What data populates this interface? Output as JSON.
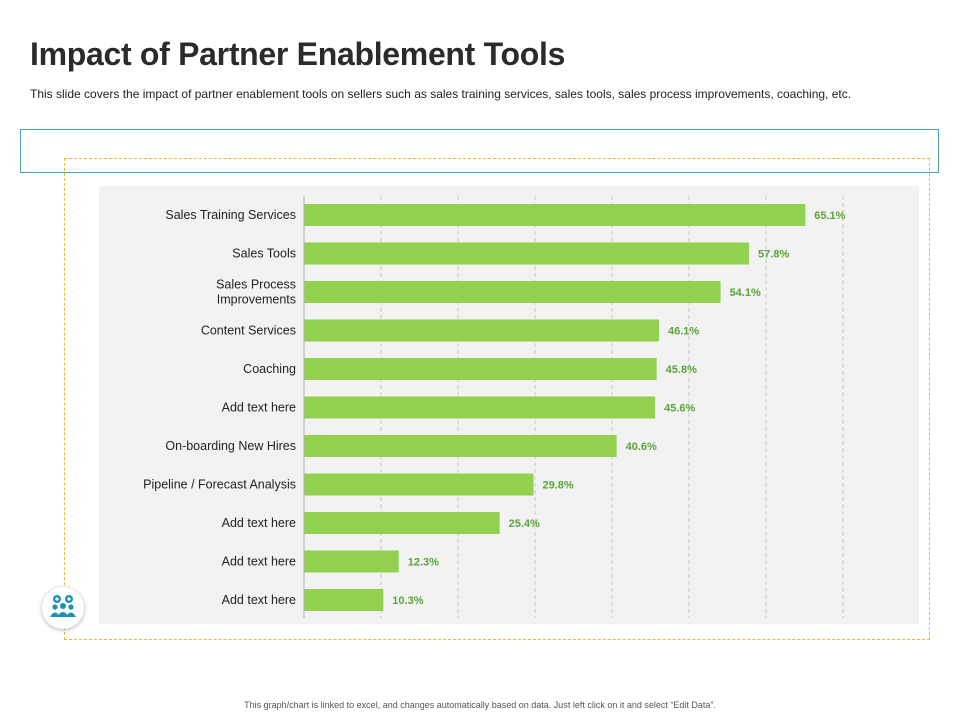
{
  "slide": {
    "title": "Impact of Partner Enablement Tools",
    "subtitle": "This slide covers the impact of partner enablement tools on sellers such as sales training services, sales tools, sales process improvements,  coaching, etc.",
    "footer": "This graph/chart is linked to excel, and changes automatically based on data. Just left click on it and select “Edit Data”.",
    "icon": "team-settings-icon"
  },
  "colors": {
    "bar": "#92d050",
    "label": "#5ba33b",
    "accent_teal": "#4aa3b4",
    "dashed_border": "#f0b53c"
  },
  "chart_data": {
    "type": "bar",
    "orientation": "horizontal",
    "title": "",
    "xlabel": "",
    "ylabel": "",
    "xlim": [
      0,
      80
    ],
    "grid": true,
    "categories": [
      "Sales Training Services",
      "Sales Tools",
      "Sales Process\nImprovements",
      "Content Services",
      "Coaching",
      "Add text here",
      "On-boarding New Hires",
      "Pipeline / Forecast Analysis",
      "Add text here",
      "Add text here",
      "Add text here"
    ],
    "values": [
      65.1,
      57.8,
      54.1,
      46.1,
      45.8,
      45.6,
      40.6,
      29.8,
      25.4,
      12.3,
      10.3
    ],
    "data_labels": [
      "65.1%",
      "57.8%",
      "54.1%",
      "46.1%",
      "45.8%",
      "45.6%",
      "40.6%",
      "29.8%",
      "25.4%",
      "12.3%",
      "10.3%"
    ]
  }
}
